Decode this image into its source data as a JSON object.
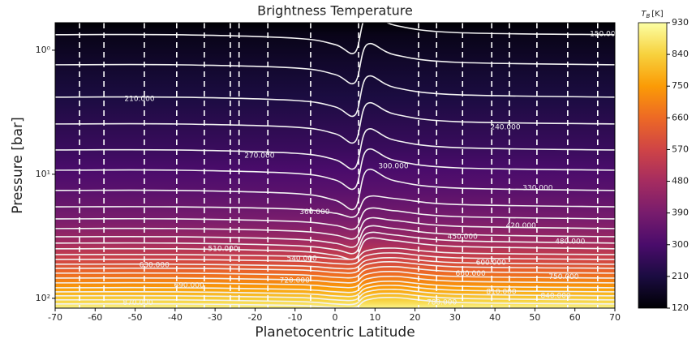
{
  "chart_data": {
    "type": "contour",
    "title": "Brightness Temperature",
    "xlabel": "Planetocentric Latitude",
    "ylabel": "Pressure [bar]",
    "xlim": [
      -70,
      70
    ],
    "xticks": [
      -70,
      -60,
      -50,
      -40,
      -30,
      -20,
      -10,
      0,
      10,
      20,
      30,
      40,
      50,
      60,
      70
    ],
    "yscale": "log",
    "y_inverted": true,
    "ylim": [
      0.6,
      120
    ],
    "yticks": [
      {
        "value": 1,
        "label": "10⁰"
      },
      {
        "value": 10,
        "label": "10¹"
      },
      {
        "value": 100,
        "label": "10²"
      }
    ],
    "x": [
      -70,
      -40,
      -10,
      0,
      5,
      8,
      15,
      30,
      70
    ],
    "series": [
      {
        "level": 150,
        "values": [
          0.75,
          0.75,
          0.8,
          0.9,
          1.04,
          0.52,
          0.63,
          0.72,
          0.75
        ]
      },
      {
        "level": 180,
        "values": [
          1.31,
          1.31,
          1.39,
          1.57,
          1.82,
          0.9,
          1.09,
          1.25,
          1.31
        ]
      },
      {
        "level": 210,
        "values": [
          2.39,
          2.39,
          2.54,
          2.86,
          3.33,
          1.64,
          2.0,
          2.28,
          2.39
        ]
      },
      {
        "level": 240,
        "values": [
          3.93,
          3.93,
          4.17,
          4.71,
          5.47,
          2.7,
          3.28,
          3.76,
          3.93
        ]
      },
      {
        "level": 270,
        "values": [
          6.37,
          6.37,
          6.77,
          7.63,
          8.87,
          4.38,
          5.32,
          6.09,
          6.37
        ]
      },
      {
        "level": 300,
        "values": [
          9.27,
          9.27,
          9.84,
          11.1,
          12.9,
          6.37,
          7.74,
          8.86,
          9.27
        ]
      },
      {
        "level": 330,
        "values": [
          13.5,
          13.5,
          14.3,
          16.2,
          18.8,
          9.27,
          11.3,
          12.9,
          13.5
        ]
      },
      {
        "level": 360,
        "values": [
          18.3,
          18.3,
          19.1,
          20.6,
          21.9,
          15.3,
          15.7,
          17.5,
          18.3
        ]
      },
      {
        "level": 390,
        "values": [
          22.9,
          22.9,
          24.0,
          25.8,
          27.4,
          19.1,
          19.7,
          21.9,
          22.9
        ]
      },
      {
        "level": 420,
        "values": [
          27.4,
          27.4,
          28.7,
          30.9,
          32.8,
          22.9,
          23.6,
          26.2,
          27.4
        ]
      },
      {
        "level": 450,
        "values": [
          31.9,
          31.9,
          33.4,
          36.0,
          38.2,
          26.6,
          27.4,
          30.5,
          31.9
        ]
      },
      {
        "level": 480,
        "values": [
          35.9,
          35.9,
          37.6,
          40.5,
          43.0,
          30.0,
          30.9,
          34.3,
          35.9
        ]
      },
      {
        "level": 510,
        "values": [
          39.9,
          39.9,
          41.7,
          45.0,
          47.8,
          33.3,
          34.3,
          38.1,
          39.9
        ]
      },
      {
        "level": 540,
        "values": [
          44.4,
          44.4,
          45.7,
          47.9,
          47.9,
          41.2,
          39.4,
          43.1,
          44.4
        ]
      },
      {
        "level": 570,
        "values": [
          48.6,
          48.6,
          50.1,
          52.4,
          52.4,
          45.1,
          43.1,
          47.1,
          48.6
        ]
      },
      {
        "level": 600,
        "values": [
          53.1,
          53.1,
          54.7,
          57.2,
          57.2,
          49.3,
          47.1,
          51.5,
          53.1
        ]
      },
      {
        "level": 630,
        "values": [
          57.3,
          57.3,
          59.0,
          61.8,
          61.8,
          53.2,
          50.8,
          55.6,
          57.3
        ]
      },
      {
        "level": 660,
        "values": [
          62.7,
          62.7,
          64.6,
          67.6,
          67.6,
          58.2,
          55.6,
          60.8,
          62.7
        ]
      },
      {
        "level": 690,
        "values": [
          68.7,
          68.7,
          70.8,
          74.1,
          74.1,
          63.8,
          60.9,
          66.6,
          68.7
        ]
      },
      {
        "level": 720,
        "values": [
          75.1,
          75.1,
          77.4,
          81.0,
          81.0,
          69.7,
          66.6,
          72.8,
          75.1
        ]
      },
      {
        "level": 750,
        "values": [
          82.2,
          82.2,
          84.7,
          88.6,
          88.6,
          76.3,
          72.9,
          79.7,
          82.2
        ]
      },
      {
        "level": 780,
        "values": [
          88.7,
          88.7,
          91.4,
          95.6,
          95.6,
          82.3,
          78.7,
          86.0,
          88.7
        ]
      },
      {
        "level": 810,
        "values": [
          95.5,
          95.5,
          98.4,
          103,
          103,
          88.6,
          84.7,
          92.6,
          95.5
        ]
      },
      {
        "level": 840,
        "values": [
          103,
          103,
          106,
          111,
          111,
          95.6,
          91.4,
          99.9,
          103
        ]
      },
      {
        "level": 870,
        "values": [
          111,
          111,
          114,
          119,
          119,
          103,
          98.5,
          108,
          111
        ]
      }
    ],
    "contour_labels": [
      {
        "value": 150,
        "label": "150.000",
        "x": 67.5,
        "y": 0.74
      },
      {
        "value": 210,
        "label": "210.000",
        "x": -48.9,
        "y": 2.47
      },
      {
        "value": 240,
        "label": "240.000",
        "x": 42.6,
        "y": 4.17
      },
      {
        "value": 270,
        "label": "270.000",
        "x": -18.9,
        "y": 7.07
      },
      {
        "value": 300,
        "label": "300.000",
        "x": 14.6,
        "y": 8.6
      },
      {
        "value": 330,
        "label": "330.000",
        "x": 50.7,
        "y": 12.9
      },
      {
        "value": 360,
        "label": "360.000",
        "x": -5.1,
        "y": 20.2
      },
      {
        "value": 420,
        "label": "420.000",
        "x": 46.5,
        "y": 26.1
      },
      {
        "value": 450,
        "label": "450.000",
        "x": 31.9,
        "y": 31.9
      },
      {
        "value": 480,
        "label": "480.000",
        "x": 58.8,
        "y": 34.8
      },
      {
        "value": 510,
        "label": "510.000",
        "x": -28,
        "y": 39.9
      },
      {
        "value": 540,
        "label": "540.000",
        "x": -8.3,
        "y": 47.8
      },
      {
        "value": 600,
        "label": "600.000",
        "x": 39,
        "y": 51.5
      },
      {
        "value": 630,
        "label": "630.000",
        "x": -45.2,
        "y": 53.9
      },
      {
        "value": 660,
        "label": "660.000",
        "x": 33.9,
        "y": 63.5
      },
      {
        "value": 690,
        "label": "690.000",
        "x": -36.5,
        "y": 78.6
      },
      {
        "value": 720,
        "label": "720.000",
        "x": -10.1,
        "y": 71.9
      },
      {
        "value": 750,
        "label": "750.000",
        "x": 57.2,
        "y": 67.3
      },
      {
        "value": 780,
        "label": "780.000",
        "x": 26.7,
        "y": 108
      },
      {
        "value": 810,
        "label": "810.000",
        "x": 41.6,
        "y": 88.7
      },
      {
        "value": 840,
        "label": "840.000",
        "x": 55.2,
        "y": 95.5
      },
      {
        "value": 870,
        "label": "870.000",
        "x": -49.3,
        "y": 109
      }
    ],
    "vertical_lines": [
      -63.9,
      -57.8,
      -47.7,
      -39.6,
      -32.7,
      -26.2,
      -24,
      -16.8,
      -6.1,
      5.9,
      20.9,
      25.4,
      31.9,
      39.2,
      43.6,
      50.5,
      58.2,
      65.7
    ],
    "contour_color": "#f2f2f2",
    "vline_color": "#ffffff",
    "colorbar": {
      "label": {
        "symbol": "T",
        "subscript": "B",
        "unit": "[K]"
      },
      "lim": [
        120,
        930
      ],
      "ticks": [
        120,
        210,
        300,
        390,
        480,
        570,
        660,
        750,
        840,
        930
      ],
      "colormap": [
        "#000004",
        "#1b0c41",
        "#4a0c6b",
        "#781c6d",
        "#a52c60",
        "#cf4446",
        "#ed6925",
        "#fb9b06",
        "#f7d13d",
        "#fcffa4"
      ]
    }
  }
}
